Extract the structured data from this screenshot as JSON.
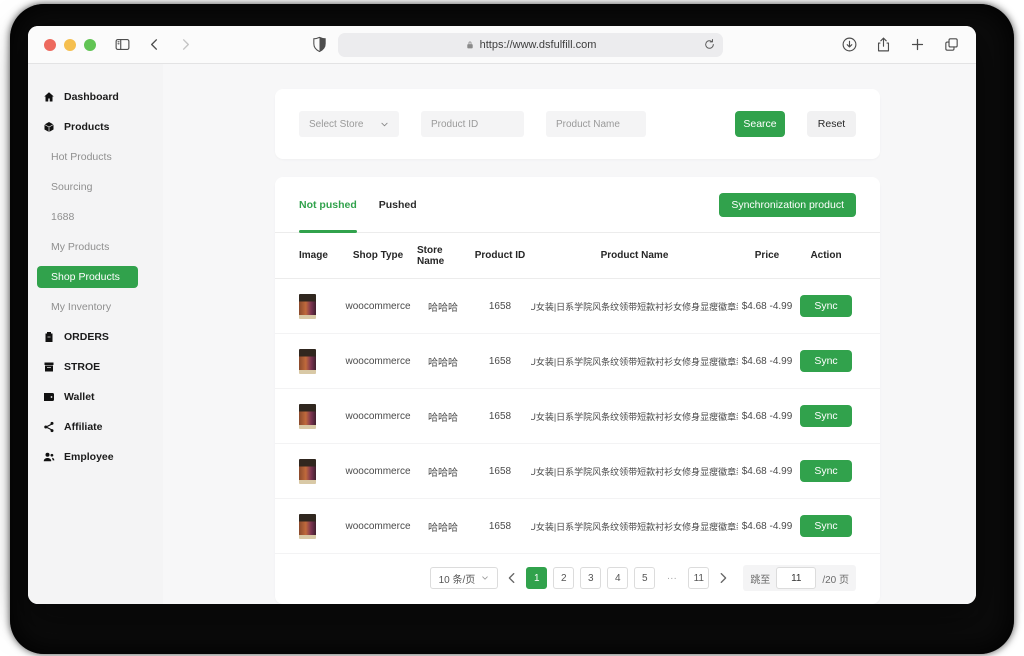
{
  "browser": {
    "url": "https://www.dsfulfill.com"
  },
  "sidebar": {
    "items": [
      {
        "label": "Dashboard",
        "icon": "home"
      },
      {
        "label": "Products",
        "icon": "box"
      },
      {
        "label": "Hot Products",
        "sub": true
      },
      {
        "label": "Sourcing",
        "sub": true
      },
      {
        "label": "1688",
        "sub": true
      },
      {
        "label": "My Products",
        "sub": true
      },
      {
        "label": "Shop Products",
        "sub": true,
        "active": true
      },
      {
        "label": "My Inventory",
        "sub": true
      },
      {
        "label": "ORDERS",
        "icon": "clipboard"
      },
      {
        "label": "STROE",
        "icon": "store"
      },
      {
        "label": "Wallet",
        "icon": "wallet"
      },
      {
        "label": "Affiliate",
        "icon": "share"
      },
      {
        "label": "Employee",
        "icon": "users"
      }
    ]
  },
  "filters": {
    "store_select": "Select Store",
    "product_id_placeholder": "Product ID",
    "product_name_placeholder": "Product Name",
    "search_label": "Searce",
    "reset_label": "Reset"
  },
  "tabs": {
    "not_pushed": "Not pushed",
    "pushed": "Pushed",
    "sync_button": "Synchronization product"
  },
  "table": {
    "headers": [
      "Image",
      "Shop Type",
      "Store Name",
      "Product ID",
      "Product Name",
      "Price",
      "Action"
    ],
    "sync_label": "Sync",
    "rows": [
      {
        "shop_type": "woocommerce",
        "store_name": "哈哈哈",
        "product_id": "1658",
        "product_name": "TIDEEKU女装|日系学院风条纹领带短款衬衫女修身显瘦徽章装饰衬衣",
        "price": "$4.68 -4.99"
      },
      {
        "shop_type": "woocommerce",
        "store_name": "哈哈哈",
        "product_id": "1658",
        "product_name": "TIDEEKU女装|日系学院风条纹领带短款衬衫女修身显瘦徽章装饰衬衣",
        "price": "$4.68 -4.99"
      },
      {
        "shop_type": "woocommerce",
        "store_name": "哈哈哈",
        "product_id": "1658",
        "product_name": "TIDEEKU女装|日系学院风条纹领带短款衬衫女修身显瘦徽章装饰衬衣",
        "price": "$4.68 -4.99"
      },
      {
        "shop_type": "woocommerce",
        "store_name": "哈哈哈",
        "product_id": "1658",
        "product_name": "TIDEEKU女装|日系学院风条纹领带短款衬衫女修身显瘦徽章装饰衬衣",
        "price": "$4.68 -4.99"
      },
      {
        "shop_type": "woocommerce",
        "store_name": "哈哈哈",
        "product_id": "1658",
        "product_name": "TIDEEKU女装|日系学院风条纹领带短款衬衫女修身显瘦徽章装饰衬衣",
        "price": "$4.68 -4.99"
      }
    ]
  },
  "pagination": {
    "page_size": "10 条/页",
    "pages": [
      "1",
      "2",
      "3",
      "4",
      "5",
      "···",
      "11"
    ],
    "active_page": "1",
    "jump_label": "跳至",
    "jump_value": "11",
    "total_label": "/20 页"
  },
  "colors": {
    "accent_green": "#31a24c"
  }
}
